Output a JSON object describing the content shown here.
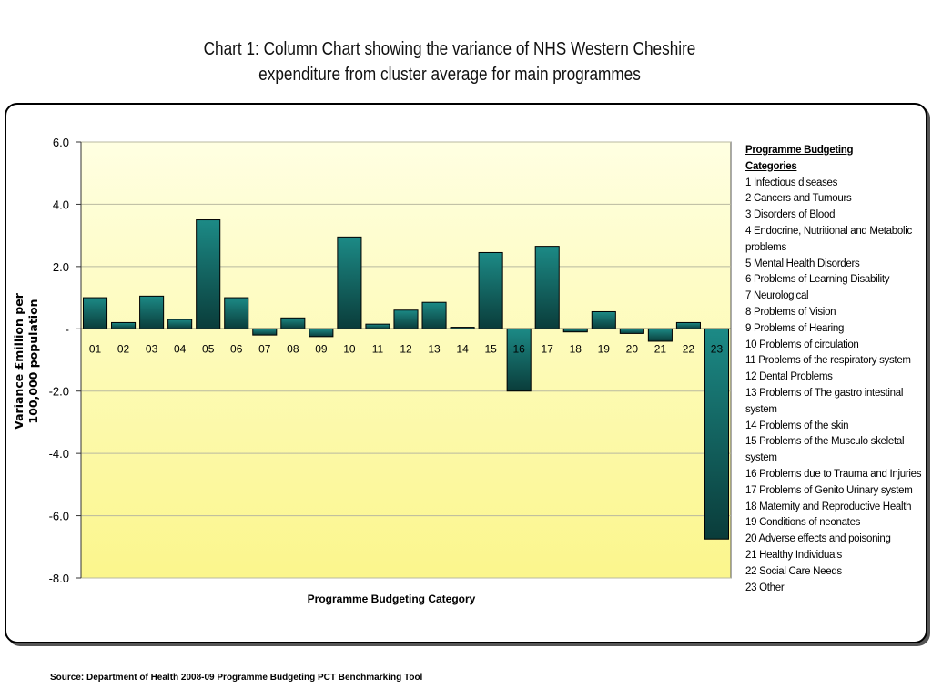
{
  "title": {
    "line1": "Chart 1: Column Chart showing the variance of NHS Western Cheshire",
    "line2": "expenditure from cluster average for main programmes"
  },
  "source": "Source: Department of Health 2008-09 Programme Budgeting PCT Benchmarking Tool",
  "legend": {
    "heading1": "Programme Budgeting",
    "heading2": "Categories",
    "items": [
      "1 Infectious diseases",
      "2 Cancers and Tumours",
      "3 Disorders of Blood",
      "4 Endocrine, Nutritional and Metabolic problems",
      "5 Mental Health Disorders",
      "6 Problems of Learning Disability",
      "7 Neurological",
      "8 Problems of Vision",
      "9 Problems of Hearing",
      "10 Problems of circulation",
      "11 Problems of the respiratory system",
      "12 Dental Problems",
      "13 Problems of The gastro intestinal system",
      "14 Problems of the skin",
      "15 Problems of the Musculo skeletal system",
      "16 Problems due to Trauma and Injuries",
      "17 Problems of Genito Urinary system",
      "18 Maternity and Reproductive Health",
      "19 Conditions of neonates",
      "20 Adverse effects and poisoning",
      "21 Healthy Individuals",
      "22 Social Care Needs",
      "23 Other"
    ]
  },
  "colors": {
    "bar_top": "#1c8a86",
    "bar_bottom": "#0a3c3a",
    "plot_top": "#ffffe2",
    "plot_bottom": "#fbf68c",
    "gridline": "#b9b9a0"
  },
  "chart_data": {
    "type": "bar",
    "categories": [
      "01",
      "02",
      "03",
      "04",
      "05",
      "06",
      "07",
      "08",
      "09",
      "10",
      "11",
      "12",
      "13",
      "14",
      "15",
      "16",
      "17",
      "18",
      "19",
      "20",
      "21",
      "22",
      "23"
    ],
    "values": [
      1.0,
      0.2,
      1.05,
      0.3,
      3.5,
      1.0,
      -0.2,
      0.35,
      -0.25,
      2.95,
      0.15,
      0.6,
      0.85,
      0.05,
      2.45,
      -2.0,
      2.65,
      -0.1,
      0.55,
      -0.15,
      -0.4,
      0.2,
      -6.75
    ],
    "xlabel": "Programme Budgeting Category",
    "ylabel_line1": "Variance £million per",
    "ylabel_line2": "100,000 population",
    "ylim": [
      -8,
      6
    ],
    "yticks": [
      6,
      4,
      2,
      0,
      -2,
      -4,
      -6,
      -8
    ],
    "ytick_labels": [
      "6.0",
      "4.0",
      "2.0",
      "-",
      "-2.0",
      "-4.0",
      "-6.0",
      "-8.0"
    ],
    "grid": true,
    "legend_position": "right"
  }
}
